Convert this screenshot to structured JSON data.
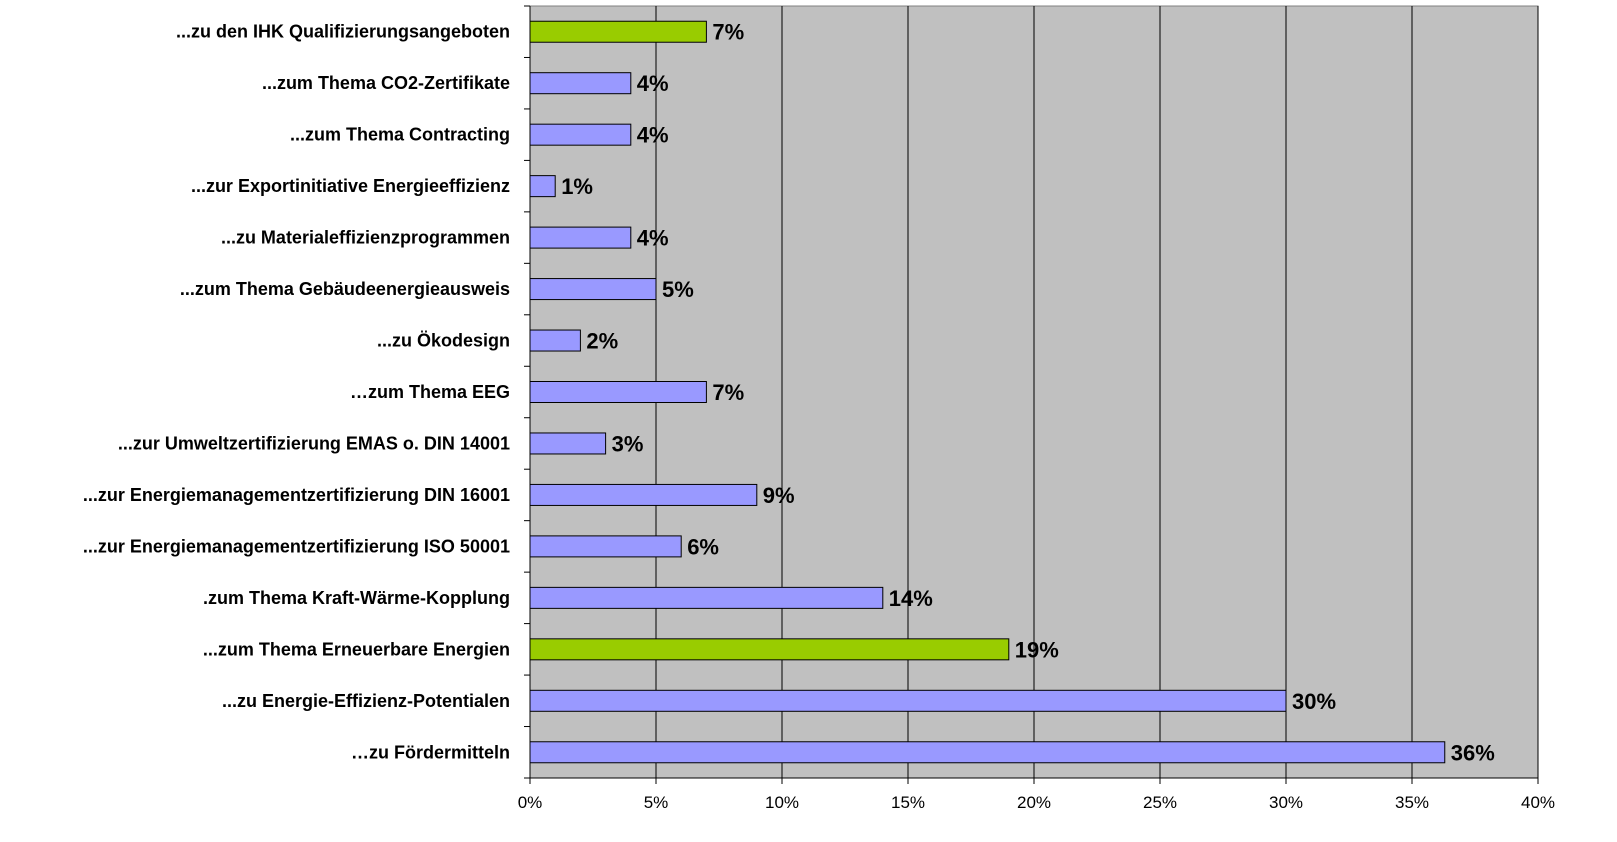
{
  "chart_data": {
    "type": "bar",
    "orientation": "horizontal",
    "title": "",
    "xlabel": "",
    "ylabel": "",
    "xlim": [
      0,
      40
    ],
    "grid": "vertical",
    "legend": "none",
    "categories": [
      "...zu den IHK Qualifizierungsangeboten",
      "...zum Thema CO2-Zertifikate",
      "...zum Thema Contracting",
      "...zur Exportinitiative Energieeffizienz",
      "...zu Materialeffizienzprogrammen",
      "...zum Thema Gebäudeenergieausweis",
      "...zu Ökodesign",
      "…zum Thema EEG",
      "...zur Umweltzertifizierung EMAS o. DIN 14001",
      "...zur Energiemanagementzertifizierung DIN 16001",
      "...zur Energiemanagementzertifizierung ISO 50001",
      ".zum Thema Kraft-Wärme-Kopplung",
      "...zum Thema Erneuerbare Energien",
      "...zu Energie-Effizienz-Potentialen",
      "…zu Fördermitteln"
    ],
    "values": [
      7,
      4,
      4,
      1,
      4,
      5,
      2,
      7,
      3,
      9,
      6,
      14,
      19,
      30,
      36.3
    ],
    "data_labels": [
      "7%",
      "4%",
      "4%",
      "1%",
      "4%",
      "5%",
      "2%",
      "7%",
      "3%",
      "9%",
      "6%",
      "14%",
      "19%",
      "30%",
      "36%"
    ],
    "highlighted": [
      true,
      false,
      false,
      false,
      false,
      false,
      false,
      false,
      false,
      false,
      false,
      false,
      true,
      false,
      false
    ],
    "x_ticks": [
      0,
      5,
      10,
      15,
      20,
      25,
      30,
      35,
      40
    ],
    "x_tick_labels": [
      "0%",
      "5%",
      "10%",
      "15%",
      "20%",
      "25%",
      "30%",
      "35%",
      "40%"
    ],
    "colors": {
      "bar": "#9999ff",
      "highlight": "#99cc00",
      "plot_background": "#c0c0c0",
      "gridline": "#000000"
    }
  }
}
